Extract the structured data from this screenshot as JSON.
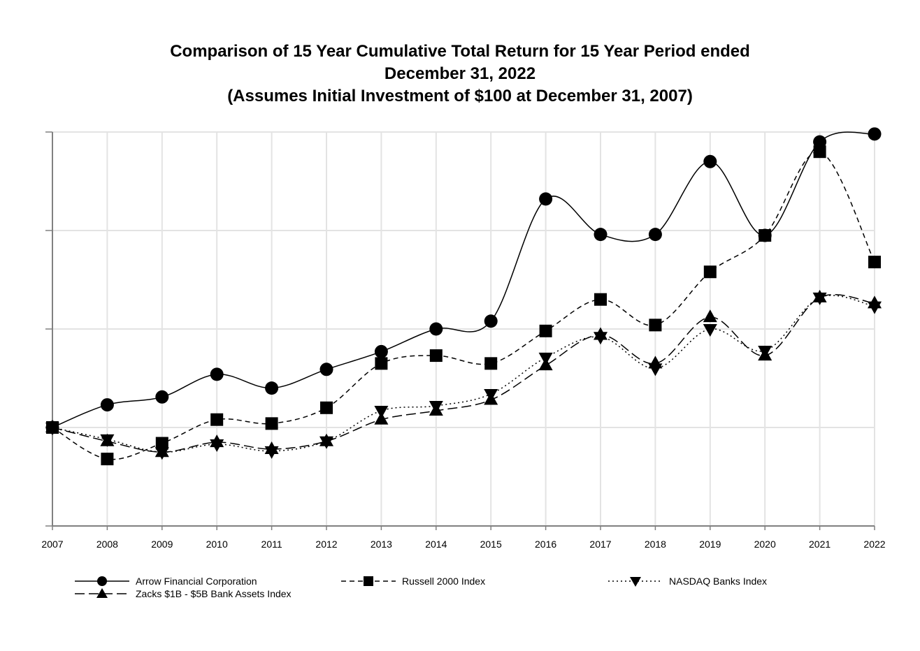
{
  "chart_data": {
    "type": "line",
    "title_lines": [
      "Comparison of 15 Year Cumulative Total Return for 15 Year Period ended",
      "December 31, 2022",
      "(Assumes Initial Investment of $100 at December 31, 2007)"
    ],
    "xlabel": "",
    "ylabel": "",
    "x": [
      "2007",
      "2008",
      "2009",
      "2010",
      "2011",
      "2012",
      "2013",
      "2014",
      "2015",
      "2016",
      "2017",
      "2018",
      "2019",
      "2020",
      "2021",
      "2022"
    ],
    "ylim": [
      50,
      250
    ],
    "ytick_values": [
      50,
      100,
      150,
      200,
      250
    ],
    "y_tick_labels_visible": false,
    "grid": true,
    "legend_position": "bottom",
    "series": [
      {
        "name": "Arrow Financial Corporation",
        "marker": "circle",
        "dash": "solid",
        "values": [
          100,
          111.5,
          115.5,
          127,
          120,
          129.5,
          138.5,
          150,
          154,
          216,
          198,
          198,
          235,
          197.5,
          245,
          249
        ]
      },
      {
        "name": "Russell 2000 Index",
        "marker": "square",
        "dash": "dashed",
        "values": [
          100,
          84,
          92,
          104,
          102,
          110,
          132.5,
          136.5,
          132.5,
          149,
          165,
          152,
          179,
          197.5,
          240,
          184
        ]
      },
      {
        "name": "NASDAQ Banks Index",
        "marker": "triangle-down",
        "dash": "dotted",
        "values": [
          100,
          94,
          87.5,
          91.5,
          88,
          93,
          108.5,
          111,
          117,
          135.5,
          146,
          130,
          150,
          139,
          166,
          161.5
        ]
      },
      {
        "name": "Zacks $1B - $5B Bank Assets Index",
        "marker": "triangle-up",
        "dash": "longdash",
        "values": [
          100,
          93,
          87.5,
          92.5,
          89,
          93,
          104,
          108.5,
          114,
          131.5,
          147,
          132.5,
          156,
          136.5,
          166,
          163
        ]
      }
    ]
  }
}
